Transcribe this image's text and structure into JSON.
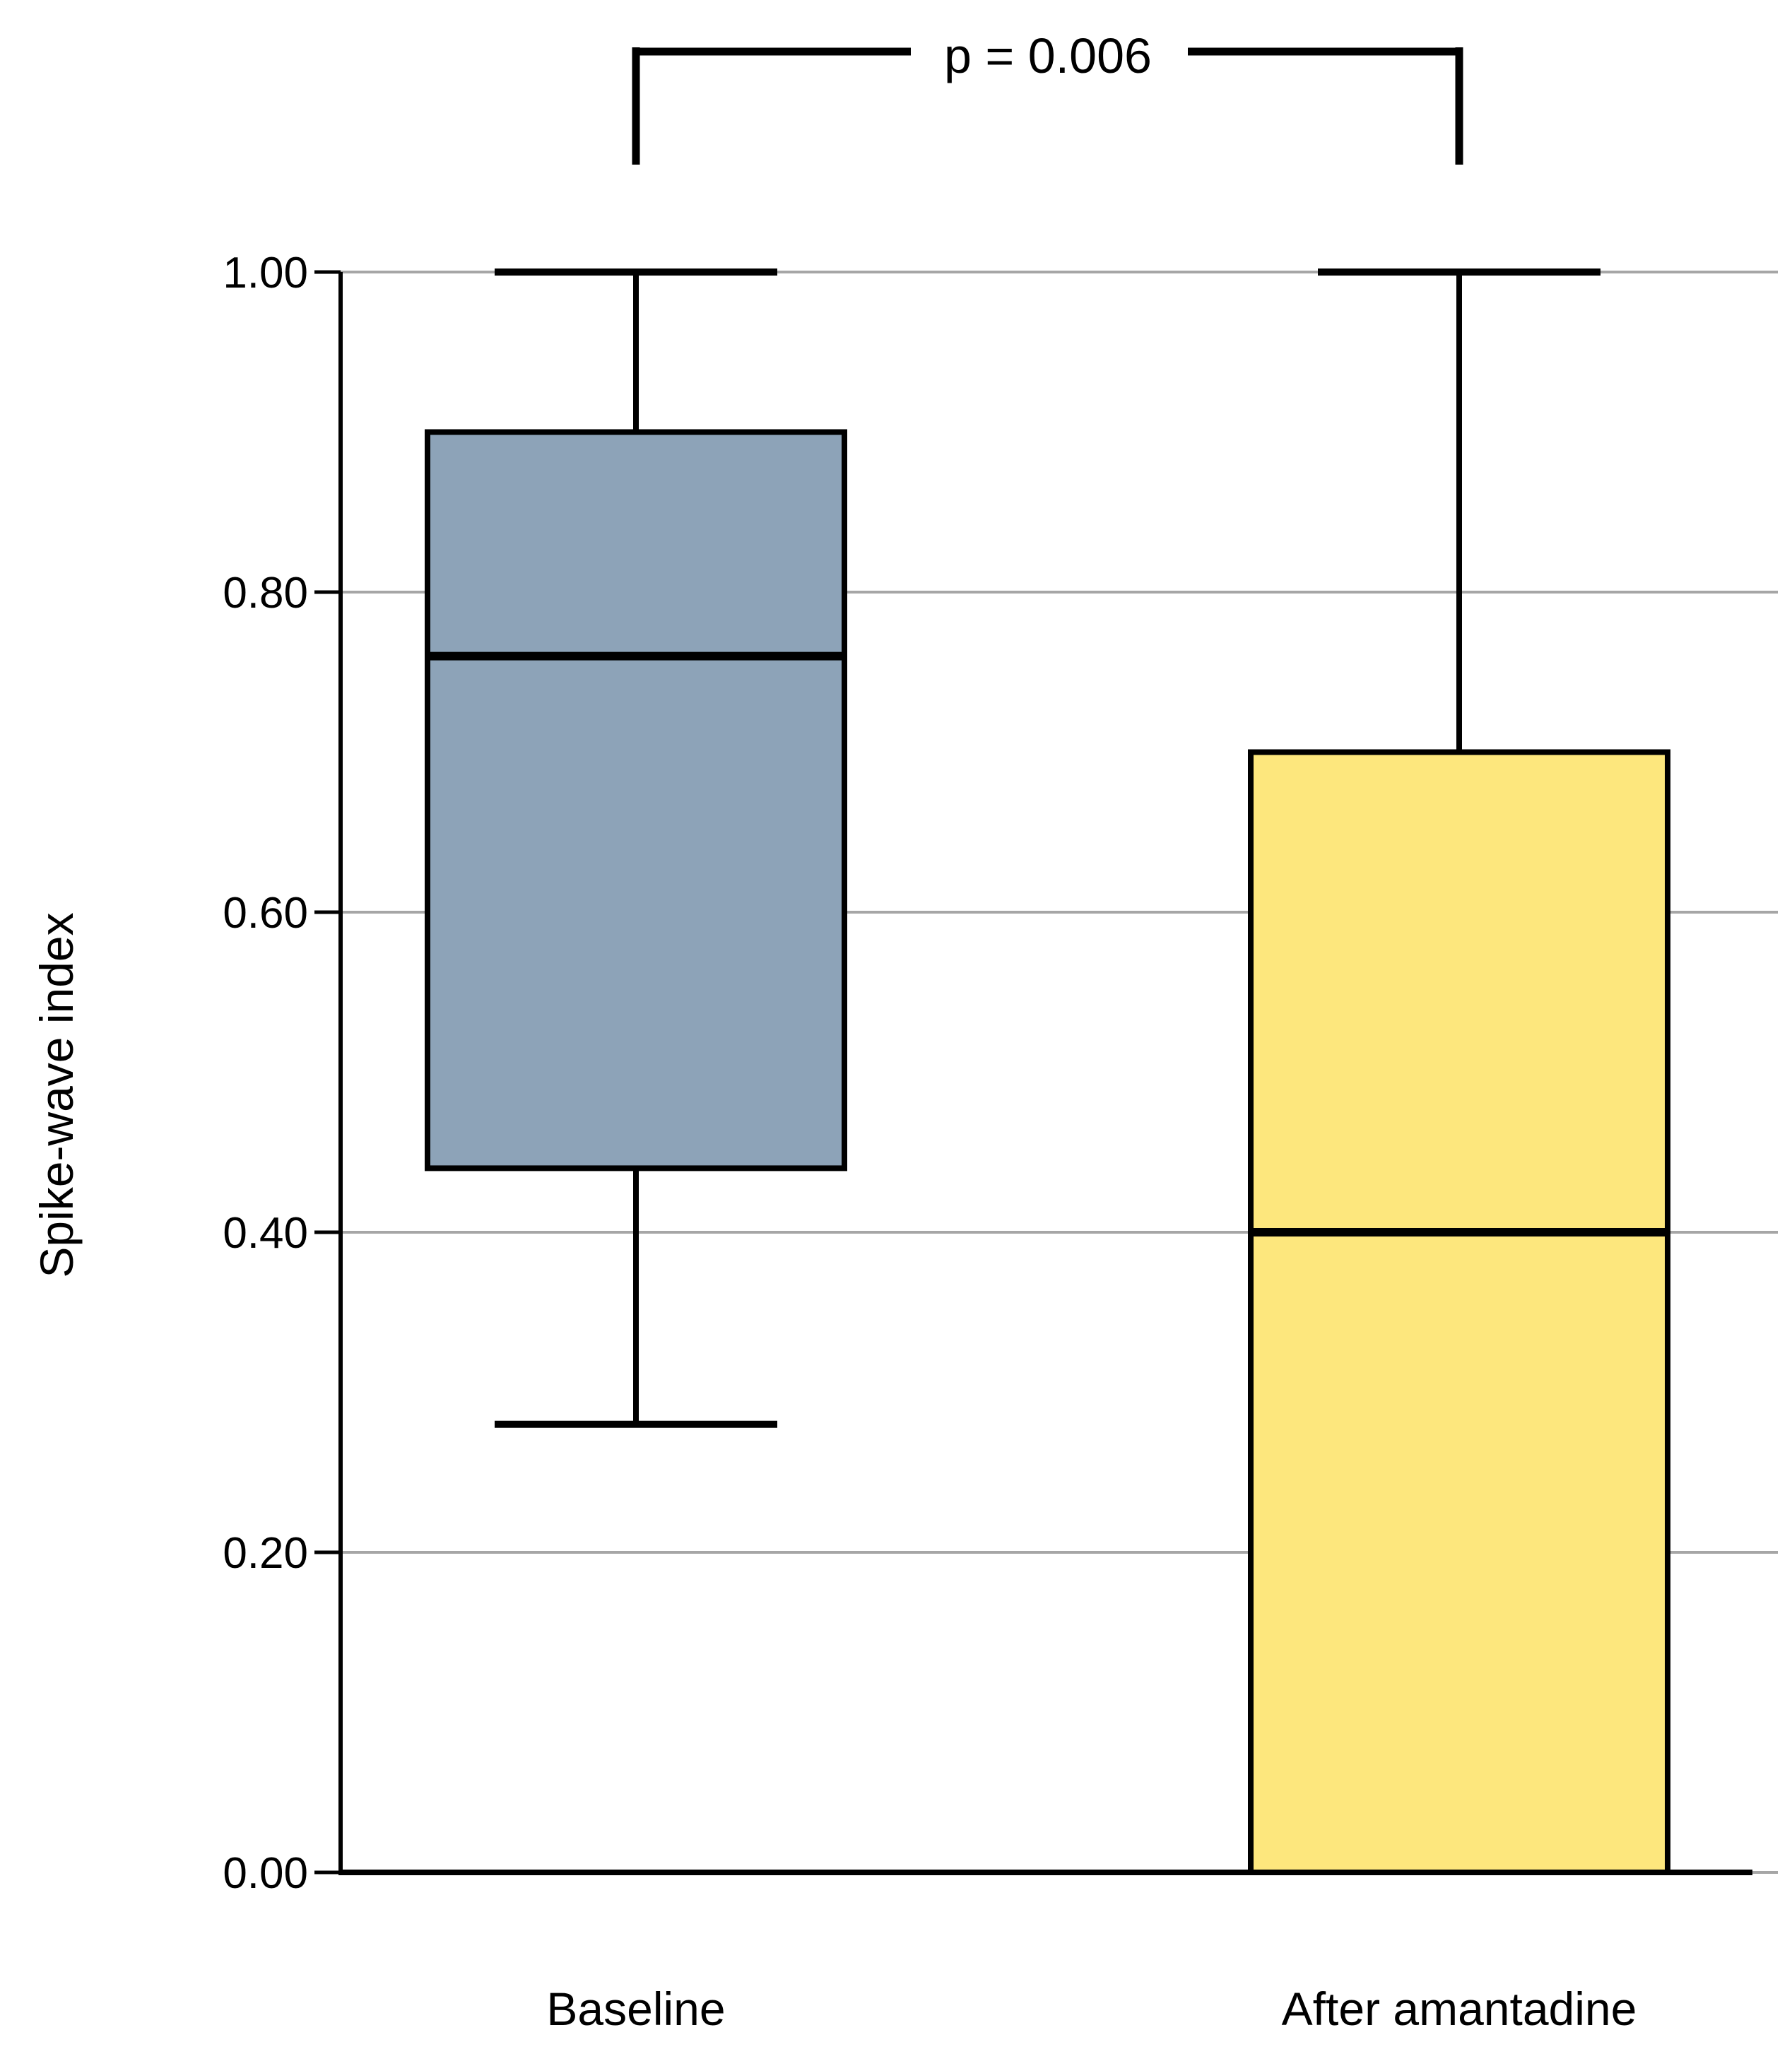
{
  "chart_data": {
    "type": "boxplot",
    "title": "",
    "ylabel": "Spike-wave index",
    "xlabel": "",
    "ylim": [
      0.0,
      1.0
    ],
    "grid": "horizontal",
    "legend": "none",
    "yticks": [
      "1.00",
      "0.80",
      "0.60",
      "0.40",
      "0.20",
      "0.00"
    ],
    "ytick_values": [
      1.0,
      0.8,
      0.6,
      0.4,
      0.2,
      0.0
    ],
    "categories": [
      "Baseline",
      "After amantadine"
    ],
    "series": [
      {
        "name": "Baseline",
        "min": 0.28,
        "q1": 0.44,
        "median": 0.76,
        "q3": 0.9,
        "max": 1.0,
        "fill": "#8DA3B8"
      },
      {
        "name": "After amantadine",
        "min": 0.0,
        "q1": 0.0,
        "median": 0.4,
        "q3": 0.7,
        "max": 1.0,
        "fill": "#FDE77D"
      }
    ],
    "significance": {
      "label": "p = 0.006",
      "between": [
        "Baseline",
        "After amantadine"
      ]
    },
    "colors": {
      "box_border": "#000000",
      "median": "#000000",
      "whisker": "#000000",
      "gridline": "#A6A6A6",
      "axis": "#000000",
      "text": "#000000",
      "background": "#FFFFFF"
    }
  }
}
